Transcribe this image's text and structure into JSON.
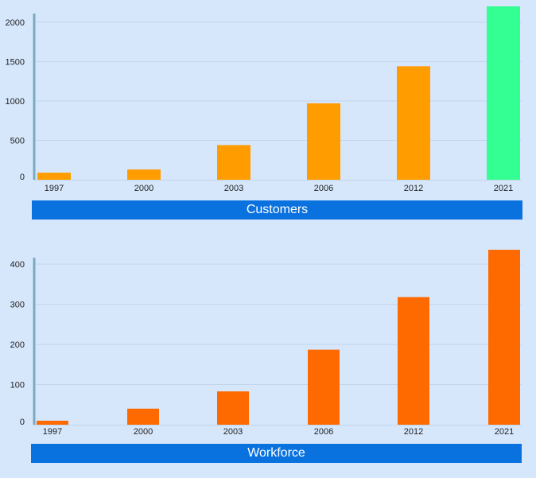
{
  "colors": {
    "background": "#d6e7fc",
    "customers_bar": "#ff9d00",
    "customers_highlight": "#34ff92",
    "workforce_bar": "#ff6a00",
    "title_bar": "#0a72df",
    "gridline": "#c2d5ea",
    "axis_line": "#7aa9c2"
  },
  "chart_data": [
    {
      "type": "bar",
      "title": "Customers",
      "categories": [
        "1997",
        "2000",
        "2003",
        "2006",
        "2012",
        "2021"
      ],
      "values": [
        90,
        130,
        440,
        970,
        1440,
        2200
      ],
      "highlight_index": 5,
      "yticks": [
        0,
        500,
        1000,
        1500,
        2000
      ],
      "ylim": [
        0,
        2200
      ],
      "grid": true,
      "xlabel": "",
      "ylabel": ""
    },
    {
      "type": "bar",
      "title": "Workforce",
      "categories": [
        "1997",
        "2000",
        "2003",
        "2006",
        "2012",
        "2021"
      ],
      "values": [
        10,
        40,
        83,
        187,
        318,
        436
      ],
      "yticks": [
        0,
        100,
        200,
        300,
        400
      ],
      "ylim": [
        0,
        436
      ],
      "grid": true,
      "xlabel": "",
      "ylabel": ""
    }
  ]
}
